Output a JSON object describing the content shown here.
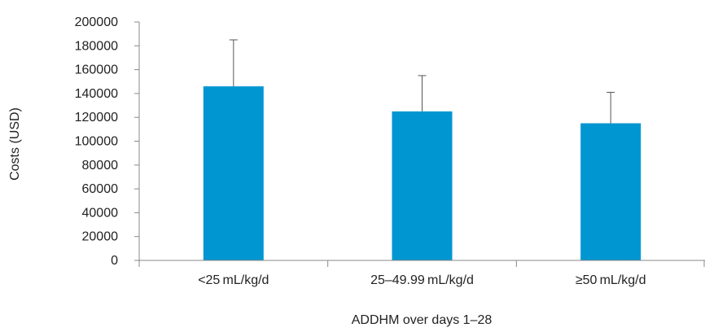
{
  "chart_data": {
    "type": "bar",
    "title": "",
    "xlabel": "ADDHM over days 1–28",
    "ylabel": "Costs (USD)",
    "categories": [
      "<25 mL/kg/d",
      "25–49.99 mL/kg/d",
      "≥50 mL/kg/d"
    ],
    "values": [
      146000,
      125000,
      115000
    ],
    "error_upper": [
      185000,
      155000,
      141000
    ],
    "ylim": [
      0,
      200000
    ],
    "yticks": [
      0,
      20000,
      40000,
      60000,
      80000,
      100000,
      120000,
      140000,
      160000,
      180000,
      200000
    ],
    "ytick_labels": [
      "0",
      "20000",
      "40000",
      "60000",
      "80000",
      "100000",
      "120000",
      "140000",
      "160000",
      "180000",
      "200000"
    ],
    "grid": false,
    "colors": {
      "bar": "#0096d1",
      "axis": "#888888",
      "error_bar": "#555555"
    }
  }
}
